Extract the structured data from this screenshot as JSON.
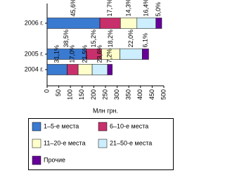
{
  "chart_data": {
    "type": "stacked-bar-horizontal",
    "x_label": "Млн грн.",
    "categories": [
      "2006 г.",
      "2005 г.",
      "2004 г."
    ],
    "series": [
      {
        "name": "1–5-е места",
        "color": "#3a7ad0",
        "values": [
          226,
          167,
          86
        ],
        "shares": [
          "45,6%",
          "38,5%",
          "31,1%"
        ]
      },
      {
        "name": "6–10-е места",
        "color": "#c8306c",
        "values": [
          88,
          66,
          47
        ],
        "shares": [
          "17,7%",
          "15,2%",
          "17,0%"
        ]
      },
      {
        "name": "11–20-е места",
        "color": "#ffffcc",
        "values": [
          71,
          79,
          60
        ],
        "shares": [
          "14,3%",
          "18,2%",
          "21,5%"
        ]
      },
      {
        "name": "21–50-е места",
        "color": "#cceeff",
        "values": [
          81,
          96,
          66
        ],
        "shares": [
          "16,4%",
          "22,0%",
          "23,6%"
        ]
      },
      {
        "name": "Прочие",
        "color": "#660099",
        "values": [
          25,
          27,
          20
        ],
        "shares": [
          "5,0%",
          "6,1%",
          "7,2%"
        ]
      }
    ],
    "xlim": [
      0,
      500
    ],
    "xticks": [
      0,
      50,
      100,
      150,
      200,
      250,
      300,
      350,
      400,
      450,
      500
    ]
  }
}
